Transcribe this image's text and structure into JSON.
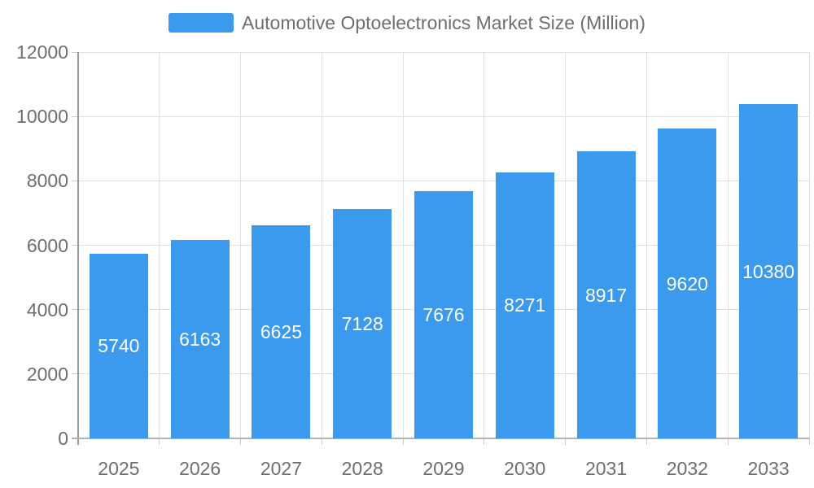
{
  "legend": {
    "label": "Automotive Optoelectronics Market Size (Million)"
  },
  "chart_data": {
    "type": "bar",
    "title": "Automotive Optoelectronics Market Size (Million)",
    "categories": [
      "2025",
      "2026",
      "2027",
      "2028",
      "2029",
      "2030",
      "2031",
      "2032",
      "2033"
    ],
    "values": [
      5740,
      6163,
      6625,
      7128,
      7676,
      8271,
      8917,
      9620,
      10380
    ],
    "xlabel": "",
    "ylabel": "",
    "ylim": [
      0,
      12000
    ],
    "yticks": [
      0,
      2000,
      4000,
      6000,
      8000,
      10000,
      12000
    ],
    "grid": true,
    "legend_position": "top",
    "bar_value_labels_inside": true,
    "colors": {
      "bar": "#3B99EE",
      "bar_label": "#FFFFFF",
      "axis_text": "#6E6E6E",
      "grid_line": "#E0E0E0",
      "y_axis_line": "#999999",
      "x_axis_line": "#B3B3B3",
      "tick": "#CCCCCC",
      "background": "#FFFFFF"
    }
  }
}
